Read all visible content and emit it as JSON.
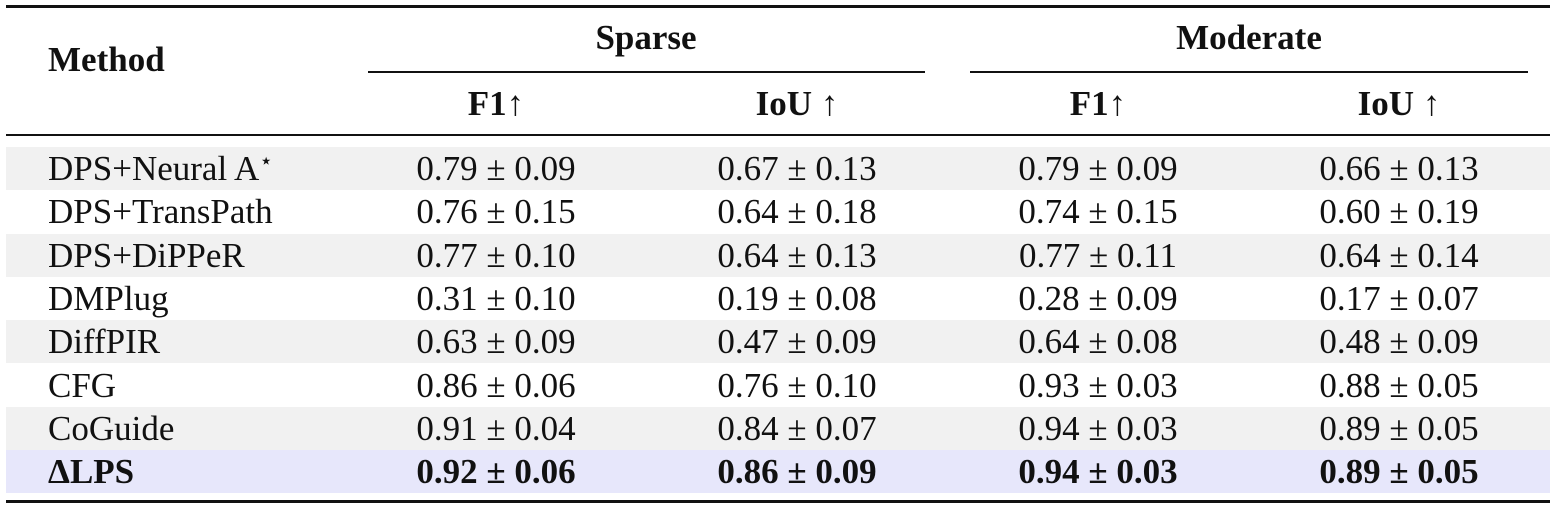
{
  "table": {
    "method_header": "Method",
    "groups": [
      {
        "label": "Sparse",
        "columns": [
          "F1↑",
          "IoU ↑"
        ]
      },
      {
        "label": "Moderate",
        "columns": [
          "F1↑",
          "IoU ↑"
        ]
      }
    ],
    "rows": [
      {
        "method": "DPS+Neural A",
        "method_sup": "⋆",
        "values": [
          "0.79 ± 0.09",
          "0.67 ± 0.13",
          "0.79 ± 0.09",
          "0.66 ± 0.13"
        ],
        "bold": false,
        "shade": true
      },
      {
        "method": "DPS+TransPath",
        "values": [
          "0.76 ± 0.15",
          "0.64 ± 0.18",
          "0.74 ± 0.15",
          "0.60 ± 0.19"
        ],
        "bold": false,
        "shade": false
      },
      {
        "method": "DPS+DiPPeR",
        "values": [
          "0.77 ± 0.10",
          "0.64 ± 0.13",
          "0.77 ± 0.11",
          "0.64 ± 0.14"
        ],
        "bold": false,
        "shade": true
      },
      {
        "method": "DMPlug",
        "values": [
          "0.31 ± 0.10",
          "0.19 ± 0.08",
          "0.28 ± 0.09",
          "0.17 ± 0.07"
        ],
        "bold": false,
        "shade": false
      },
      {
        "method": "DiffPIR",
        "values": [
          "0.63 ± 0.09",
          "0.47 ± 0.09",
          "0.64 ± 0.08",
          "0.48 ± 0.09"
        ],
        "bold": false,
        "shade": true
      },
      {
        "method": "CFG",
        "values": [
          "0.86 ± 0.06",
          "0.76 ± 0.10",
          "0.93 ± 0.03",
          "0.88 ± 0.05"
        ],
        "bold": false,
        "shade": false
      },
      {
        "method": "CoGuide",
        "values": [
          "0.91 ± 0.04",
          "0.84 ± 0.07",
          "0.94 ± 0.03",
          "0.89 ± 0.05"
        ],
        "bold": false,
        "shade": true
      },
      {
        "method": "ΔLPS",
        "values": [
          "0.92 ± 0.06",
          "0.86 ± 0.09",
          "0.94 ± 0.03",
          "0.89 ± 0.05"
        ],
        "bold": true,
        "highlight": true
      }
    ]
  }
}
